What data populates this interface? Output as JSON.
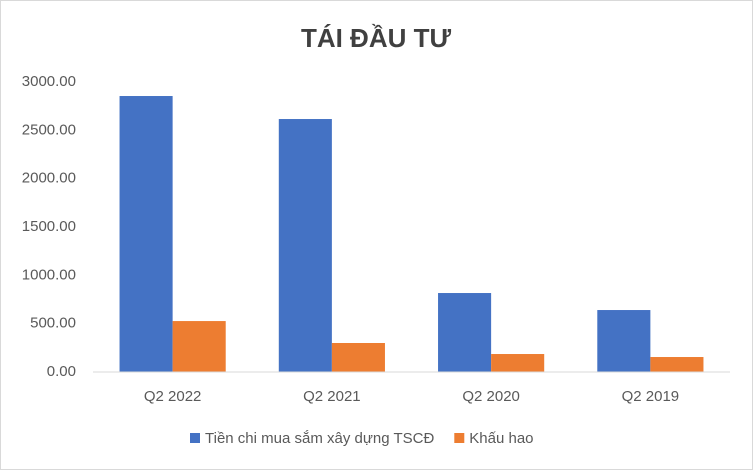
{
  "chart_data": {
    "type": "bar",
    "title": "TÁI ĐẦU TƯ",
    "categories": [
      "Q2 2022",
      "Q2 2021",
      "Q2 2020",
      "Q2 2019"
    ],
    "series": [
      {
        "name": "Tiền chi mua sắm xây dựng TSCĐ",
        "color": "#4472c4",
        "values": [
          2855,
          2617,
          817,
          641
        ]
      },
      {
        "name": "Khấu hao",
        "color": "#ed7d31",
        "values": [
          527,
          300,
          186,
          155
        ]
      }
    ],
    "ylim": [
      0,
      3000
    ],
    "yticks": [
      {
        "value": 0,
        "label": "0.00"
      },
      {
        "value": 500,
        "label": "500.00"
      },
      {
        "value": 1000,
        "label": "1000.00"
      },
      {
        "value": 1500,
        "label": "1500.00"
      },
      {
        "value": 2000,
        "label": "2000.00"
      },
      {
        "value": 2500,
        "label": "2500.00"
      },
      {
        "value": 3000,
        "label": "3000.00"
      }
    ],
    "grid": false,
    "legend": "bottom"
  }
}
